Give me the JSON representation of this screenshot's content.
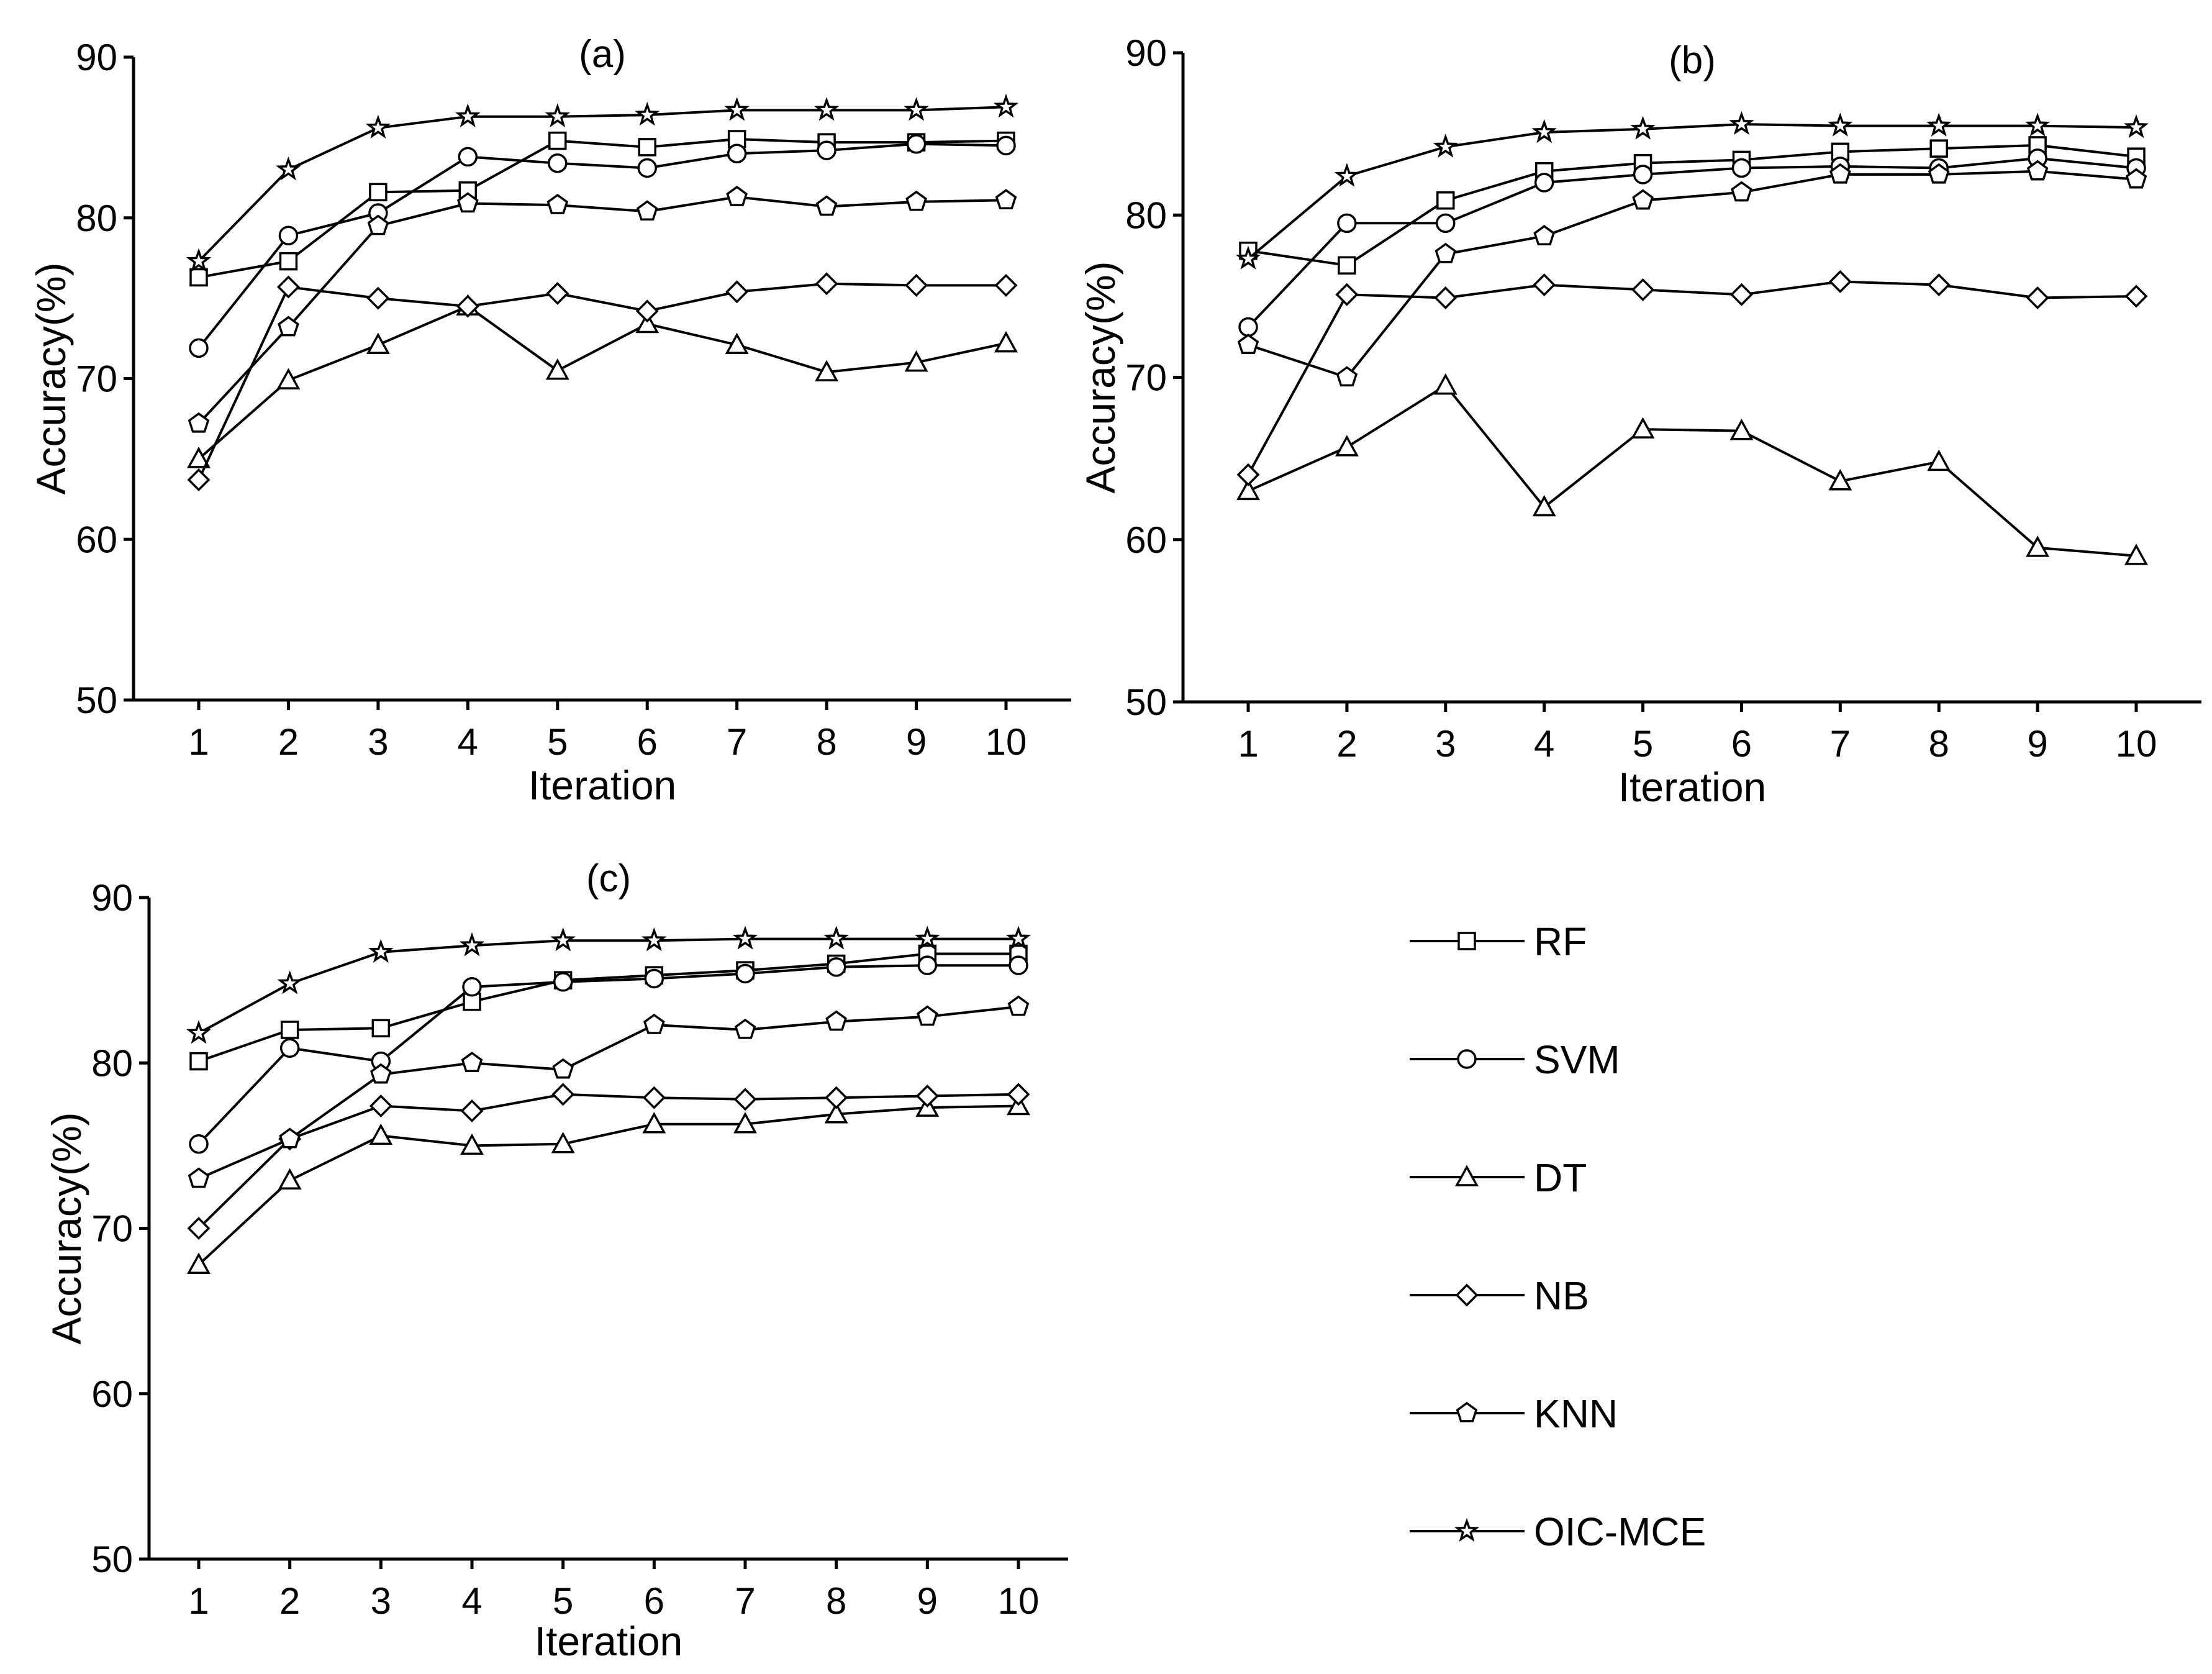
{
  "chart_data": [
    {
      "type": "line",
      "title": "(a)",
      "xlabel": "Iteration",
      "ylabel": "Accuracy(%)",
      "x": [
        1,
        2,
        3,
        4,
        5,
        6,
        7,
        8,
        9,
        10
      ],
      "xticks": [
        "1",
        "2",
        "3",
        "4",
        "5",
        "6",
        "7",
        "8",
        "9",
        "10"
      ],
      "ylim": [
        50,
        90
      ],
      "yticks": [
        "50",
        "60",
        "70",
        "80",
        "90"
      ],
      "grid": false,
      "series": [
        {
          "name": "RF",
          "marker": "square",
          "values": [
            76.3,
            77.3,
            81.6,
            81.7,
            84.8,
            84.4,
            84.9,
            84.7,
            84.7,
            84.8
          ]
        },
        {
          "name": "SVM",
          "marker": "circle",
          "values": [
            71.9,
            78.9,
            80.3,
            83.8,
            83.4,
            83.1,
            84.0,
            84.2,
            84.6,
            84.5
          ]
        },
        {
          "name": "DT",
          "marker": "triangle",
          "values": [
            65.0,
            69.9,
            72.1,
            74.5,
            70.5,
            73.4,
            72.1,
            70.4,
            71.0,
            72.2
          ]
        },
        {
          "name": "NB",
          "marker": "diamond",
          "values": [
            63.7,
            75.7,
            75.0,
            74.5,
            75.3,
            74.2,
            75.4,
            75.9,
            75.8,
            75.8
          ]
        },
        {
          "name": "KNN",
          "marker": "pentagon",
          "values": [
            67.2,
            73.2,
            79.5,
            80.9,
            80.8,
            80.4,
            81.3,
            80.7,
            81.0,
            81.1
          ]
        },
        {
          "name": "OIC-MCE",
          "marker": "star",
          "values": [
            77.3,
            83.0,
            85.6,
            86.3,
            86.3,
            86.4,
            86.7,
            86.7,
            86.7,
            86.9
          ]
        }
      ]
    },
    {
      "type": "line",
      "title": "(b)",
      "xlabel": "Iteration",
      "ylabel": "Accuracy(%)",
      "x": [
        1,
        2,
        3,
        4,
        5,
        6,
        7,
        8,
        9,
        10
      ],
      "xticks": [
        "1",
        "2",
        "3",
        "4",
        "5",
        "6",
        "7",
        "8",
        "9",
        "10"
      ],
      "ylim": [
        50,
        90
      ],
      "yticks": [
        "50",
        "60",
        "70",
        "80",
        "90"
      ],
      "grid": false,
      "series": [
        {
          "name": "RF",
          "marker": "square",
          "values": [
            77.8,
            76.9,
            80.9,
            82.7,
            83.2,
            83.4,
            83.9,
            84.1,
            84.3,
            83.6
          ]
        },
        {
          "name": "SVM",
          "marker": "circle",
          "values": [
            73.1,
            79.5,
            79.5,
            82.0,
            82.5,
            82.9,
            83.0,
            82.9,
            83.5,
            82.9
          ]
        },
        {
          "name": "DT",
          "marker": "triangle",
          "values": [
            63.0,
            65.7,
            69.5,
            62.0,
            66.8,
            66.7,
            63.6,
            64.8,
            59.5,
            59.0
          ]
        },
        {
          "name": "NB",
          "marker": "diamond",
          "values": [
            64.0,
            75.1,
            74.9,
            75.7,
            75.4,
            75.1,
            75.9,
            75.7,
            74.9,
            75.0
          ]
        },
        {
          "name": "KNN",
          "marker": "pentagon",
          "values": [
            72.0,
            70.0,
            77.6,
            78.7,
            80.9,
            81.4,
            82.5,
            82.5,
            82.7,
            82.2
          ]
        },
        {
          "name": "OIC-MCE",
          "marker": "star",
          "values": [
            77.3,
            82.4,
            84.2,
            85.1,
            85.3,
            85.6,
            85.5,
            85.5,
            85.5,
            85.4
          ]
        }
      ]
    },
    {
      "type": "line",
      "title": "(c)",
      "xlabel": "Iteration",
      "ylabel": "Accuracy(%)",
      "x": [
        1,
        2,
        3,
        4,
        5,
        6,
        7,
        8,
        9,
        10
      ],
      "xticks": [
        "1",
        "2",
        "3",
        "4",
        "5",
        "6",
        "7",
        "8",
        "9",
        "10"
      ],
      "ylim": [
        50,
        90
      ],
      "yticks": [
        "50",
        "60",
        "70",
        "80",
        "90"
      ],
      "grid": false,
      "series": [
        {
          "name": "RF",
          "marker": "square",
          "values": [
            80.1,
            82.0,
            82.1,
            83.7,
            85.0,
            85.3,
            85.6,
            86.0,
            86.6,
            86.6
          ]
        },
        {
          "name": "SVM",
          "marker": "circle",
          "values": [
            75.1,
            80.9,
            80.1,
            84.6,
            84.9,
            85.1,
            85.4,
            85.8,
            85.9,
            85.9
          ]
        },
        {
          "name": "DT",
          "marker": "triangle",
          "values": [
            67.8,
            72.9,
            75.6,
            75.0,
            75.1,
            76.3,
            76.3,
            76.9,
            77.3,
            77.4
          ]
        },
        {
          "name": "NB",
          "marker": "diamond",
          "values": [
            70.0,
            75.4,
            77.4,
            77.1,
            78.1,
            77.9,
            77.8,
            77.9,
            78.0,
            78.1
          ]
        },
        {
          "name": "KNN",
          "marker": "pentagon",
          "values": [
            73.0,
            75.4,
            79.3,
            80.0,
            79.6,
            82.3,
            82.0,
            82.5,
            82.8,
            83.4
          ]
        },
        {
          "name": "OIC-MCE",
          "marker": "star",
          "values": [
            81.8,
            84.8,
            86.7,
            87.1,
            87.4,
            87.4,
            87.5,
            87.5,
            87.5,
            87.5
          ]
        }
      ]
    }
  ],
  "legend": {
    "position": "bottom-right",
    "entries": [
      {
        "label": "RF",
        "marker": "square"
      },
      {
        "label": "SVM",
        "marker": "circle"
      },
      {
        "label": "DT",
        "marker": "triangle"
      },
      {
        "label": "NB",
        "marker": "diamond"
      },
      {
        "label": "KNN",
        "marker": "pentagon"
      },
      {
        "label": "OIC-MCE",
        "marker": "star"
      }
    ]
  }
}
